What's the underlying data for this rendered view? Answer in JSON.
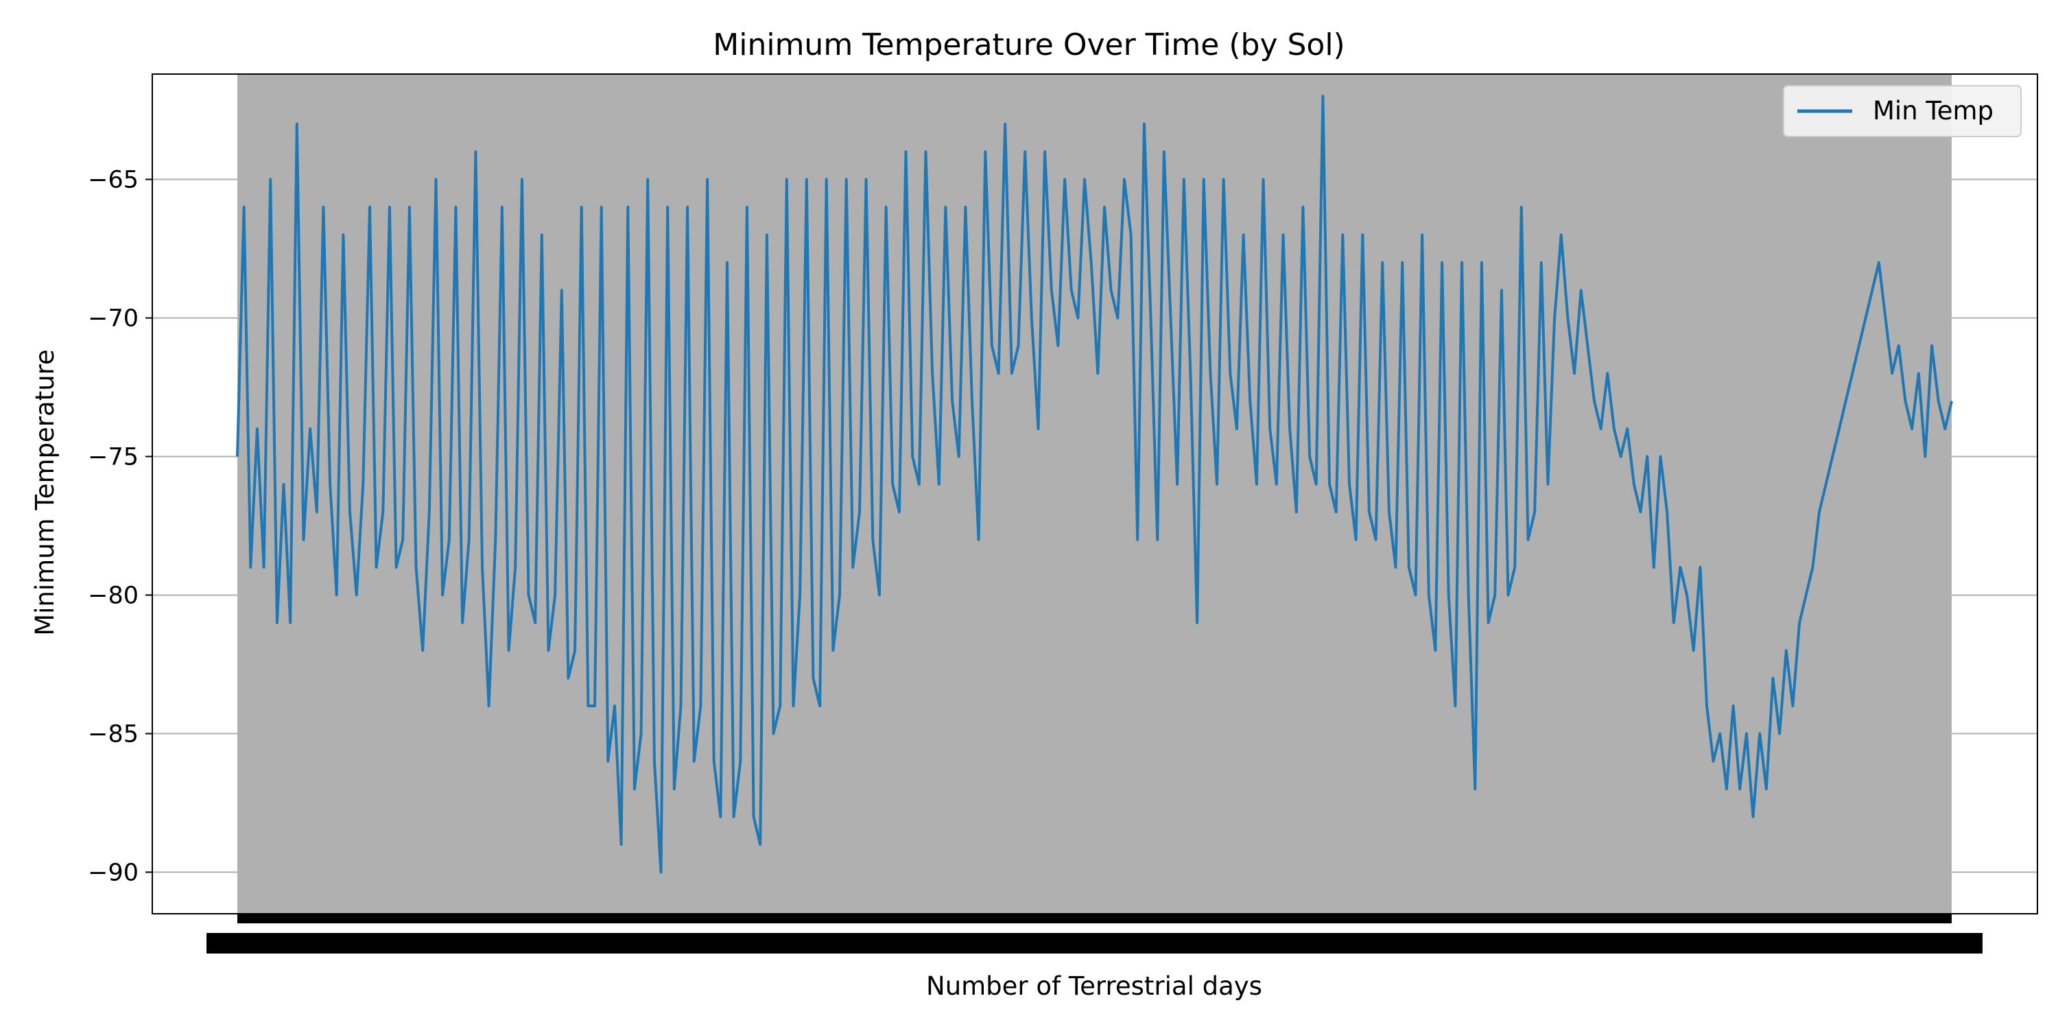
{
  "chart_data": {
    "type": "line",
    "title": "Minimum Temperature Over Time (by Sol)",
    "xlabel": "Number of Terrestrial days",
    "ylabel": "Minimum Temperature",
    "ylim": [
      -91.5,
      -61.2
    ],
    "yticks": [
      -65,
      -70,
      -75,
      -80,
      -85,
      -90
    ],
    "ytick_labels": [
      "−65",
      "−70",
      "−75",
      "−80",
      "−85",
      "−90"
    ],
    "grid": "horizontal",
    "plot_background": "#b0b0b0",
    "line_color": "#1f77b4",
    "x_tick_labels": "dense overlapping category labels",
    "legend_position": "top-right",
    "series": [
      {
        "name": "Min Temp",
        "points": [
          [
            0,
            -75
          ],
          [
            1,
            -66
          ],
          [
            2,
            -79
          ],
          [
            3,
            -74
          ],
          [
            4,
            -79
          ],
          [
            5,
            -65
          ],
          [
            6,
            -81
          ],
          [
            7,
            -76
          ],
          [
            8,
            -81
          ],
          [
            9,
            -63
          ],
          [
            10,
            -78
          ],
          [
            11,
            -74
          ],
          [
            12,
            -77
          ],
          [
            13,
            -66
          ],
          [
            14,
            -76
          ],
          [
            15,
            -80
          ],
          [
            16,
            -67
          ],
          [
            17,
            -77
          ],
          [
            18,
            -80
          ],
          [
            19,
            -76
          ],
          [
            20,
            -66
          ],
          [
            21,
            -79
          ],
          [
            22,
            -77
          ],
          [
            23,
            -66
          ],
          [
            24,
            -79
          ],
          [
            25,
            -78
          ],
          [
            26,
            -66
          ],
          [
            27,
            -79
          ],
          [
            28,
            -82
          ],
          [
            29,
            -77
          ],
          [
            30,
            -65
          ],
          [
            31,
            -80
          ],
          [
            32,
            -78
          ],
          [
            33,
            -66
          ],
          [
            34,
            -81
          ],
          [
            35,
            -78
          ],
          [
            36,
            -64
          ],
          [
            37,
            -79
          ],
          [
            38,
            -84
          ],
          [
            39,
            -78
          ],
          [
            40,
            -66
          ],
          [
            41,
            -82
          ],
          [
            42,
            -79
          ],
          [
            43,
            -65
          ],
          [
            44,
            -80
          ],
          [
            45,
            -81
          ],
          [
            46,
            -67
          ],
          [
            47,
            -82
          ],
          [
            48,
            -80
          ],
          [
            49,
            -69
          ],
          [
            50,
            -83
          ],
          [
            51,
            -82
          ],
          [
            52,
            -66
          ],
          [
            53,
            -84
          ],
          [
            54,
            -84
          ],
          [
            55,
            -66
          ],
          [
            56,
            -86
          ],
          [
            57,
            -84
          ],
          [
            58,
            -89
          ],
          [
            59,
            -66
          ],
          [
            60,
            -87
          ],
          [
            61,
            -85
          ],
          [
            62,
            -65
          ],
          [
            63,
            -86
          ],
          [
            64,
            -90
          ],
          [
            65,
            -66
          ],
          [
            66,
            -87
          ],
          [
            67,
            -84
          ],
          [
            68,
            -66
          ],
          [
            69,
            -86
          ],
          [
            70,
            -84
          ],
          [
            71,
            -65
          ],
          [
            72,
            -86
          ],
          [
            73,
            -88
          ],
          [
            74,
            -68
          ],
          [
            75,
            -88
          ],
          [
            76,
            -86
          ],
          [
            77,
            -66
          ],
          [
            78,
            -88
          ],
          [
            79,
            -89
          ],
          [
            80,
            -67
          ],
          [
            81,
            -85
          ],
          [
            82,
            -84
          ],
          [
            83,
            -65
          ],
          [
            84,
            -84
          ],
          [
            85,
            -80
          ],
          [
            86,
            -65
          ],
          [
            87,
            -83
          ],
          [
            88,
            -84
          ],
          [
            89,
            -65
          ],
          [
            90,
            -82
          ],
          [
            91,
            -80
          ],
          [
            92,
            -65
          ],
          [
            93,
            -79
          ],
          [
            94,
            -77
          ],
          [
            95,
            -65
          ],
          [
            96,
            -78
          ],
          [
            97,
            -80
          ],
          [
            98,
            -66
          ],
          [
            99,
            -76
          ],
          [
            100,
            -77
          ],
          [
            101,
            -64
          ],
          [
            102,
            -75
          ],
          [
            103,
            -76
          ],
          [
            104,
            -64
          ],
          [
            105,
            -72
          ],
          [
            106,
            -76
          ],
          [
            107,
            -66
          ],
          [
            108,
            -73
          ],
          [
            109,
            -75
          ],
          [
            110,
            -66
          ],
          [
            111,
            -73
          ],
          [
            112,
            -78
          ],
          [
            113,
            -64
          ],
          [
            114,
            -71
          ],
          [
            115,
            -72
          ],
          [
            116,
            -63
          ],
          [
            117,
            -72
          ],
          [
            118,
            -71
          ],
          [
            119,
            -64
          ],
          [
            120,
            -70
          ],
          [
            121,
            -74
          ],
          [
            122,
            -64
          ],
          [
            123,
            -69
          ],
          [
            124,
            -71
          ],
          [
            125,
            -65
          ],
          [
            126,
            -69
          ],
          [
            127,
            -70
          ],
          [
            128,
            -65
          ],
          [
            129,
            -68
          ],
          [
            130,
            -72
          ],
          [
            131,
            -66
          ],
          [
            132,
            -69
          ],
          [
            133,
            -70
          ],
          [
            134,
            -65
          ],
          [
            135,
            -67
          ],
          [
            136,
            -78
          ],
          [
            137,
            -63
          ],
          [
            138,
            -70
          ],
          [
            139,
            -78
          ],
          [
            140,
            -64
          ],
          [
            141,
            -70
          ],
          [
            142,
            -76
          ],
          [
            143,
            -65
          ],
          [
            144,
            -72
          ],
          [
            145,
            -81
          ],
          [
            146,
            -65
          ],
          [
            147,
            -72
          ],
          [
            148,
            -76
          ],
          [
            149,
            -65
          ],
          [
            150,
            -72
          ],
          [
            151,
            -74
          ],
          [
            152,
            -67
          ],
          [
            153,
            -73
          ],
          [
            154,
            -76
          ],
          [
            155,
            -65
          ],
          [
            156,
            -74
          ],
          [
            157,
            -76
          ],
          [
            158,
            -67
          ],
          [
            159,
            -74
          ],
          [
            160,
            -77
          ],
          [
            161,
            -66
          ],
          [
            162,
            -75
          ],
          [
            163,
            -76
          ],
          [
            164,
            -62
          ],
          [
            165,
            -76
          ],
          [
            166,
            -77
          ],
          [
            167,
            -67
          ],
          [
            168,
            -76
          ],
          [
            169,
            -78
          ],
          [
            170,
            -67
          ],
          [
            171,
            -77
          ],
          [
            172,
            -78
          ],
          [
            173,
            -68
          ],
          [
            174,
            -77
          ],
          [
            175,
            -79
          ],
          [
            176,
            -68
          ],
          [
            177,
            -79
          ],
          [
            178,
            -80
          ],
          [
            179,
            -67
          ],
          [
            180,
            -80
          ],
          [
            181,
            -82
          ],
          [
            182,
            -68
          ],
          [
            183,
            -80
          ],
          [
            184,
            -84
          ],
          [
            185,
            -68
          ],
          [
            186,
            -80
          ],
          [
            187,
            -87
          ],
          [
            188,
            -68
          ],
          [
            189,
            -81
          ],
          [
            190,
            -80
          ],
          [
            191,
            -69
          ],
          [
            192,
            -80
          ],
          [
            193,
            -79
          ],
          [
            194,
            -66
          ],
          [
            195,
            -78
          ],
          [
            196,
            -77
          ],
          [
            197,
            -68
          ],
          [
            198,
            -76
          ],
          [
            199,
            -70
          ],
          [
            200,
            -67
          ],
          [
            201,
            -70
          ],
          [
            202,
            -72
          ],
          [
            203,
            -69
          ],
          [
            204,
            -71
          ],
          [
            205,
            -73
          ],
          [
            206,
            -74
          ],
          [
            207,
            -72
          ],
          [
            208,
            -74
          ],
          [
            209,
            -75
          ],
          [
            210,
            -74
          ],
          [
            211,
            -76
          ],
          [
            212,
            -77
          ],
          [
            213,
            -75
          ],
          [
            214,
            -79
          ],
          [
            215,
            -75
          ],
          [
            216,
            -77
          ],
          [
            217,
            -81
          ],
          [
            218,
            -79
          ],
          [
            219,
            -80
          ],
          [
            220,
            -82
          ],
          [
            221,
            -79
          ],
          [
            222,
            -84
          ],
          [
            223,
            -86
          ],
          [
            224,
            -85
          ],
          [
            225,
            -87
          ],
          [
            226,
            -84
          ],
          [
            227,
            -87
          ],
          [
            228,
            -85
          ],
          [
            229,
            -88
          ],
          [
            230,
            -85
          ],
          [
            231,
            -87
          ],
          [
            232,
            -83
          ],
          [
            233,
            -85
          ],
          [
            234,
            -82
          ],
          [
            235,
            -84
          ],
          [
            236,
            -81
          ],
          [
            237,
            -80
          ],
          [
            238,
            -79
          ],
          [
            239,
            -77
          ],
          [
            240,
            -76
          ],
          [
            241,
            -75
          ],
          [
            242,
            -74
          ],
          [
            243,
            -73
          ],
          [
            244,
            -72
          ],
          [
            245,
            -71
          ],
          [
            246,
            -70
          ],
          [
            247,
            -69
          ],
          [
            248,
            -68
          ],
          [
            249,
            -70
          ],
          [
            250,
            -72
          ],
          [
            251,
            -71
          ],
          [
            252,
            -73
          ],
          [
            253,
            -74
          ],
          [
            254,
            -72
          ],
          [
            255,
            -75
          ],
          [
            256,
            -71
          ],
          [
            257,
            -73
          ],
          [
            258,
            -74
          ],
          [
            259,
            -73
          ]
        ]
      }
    ]
  }
}
